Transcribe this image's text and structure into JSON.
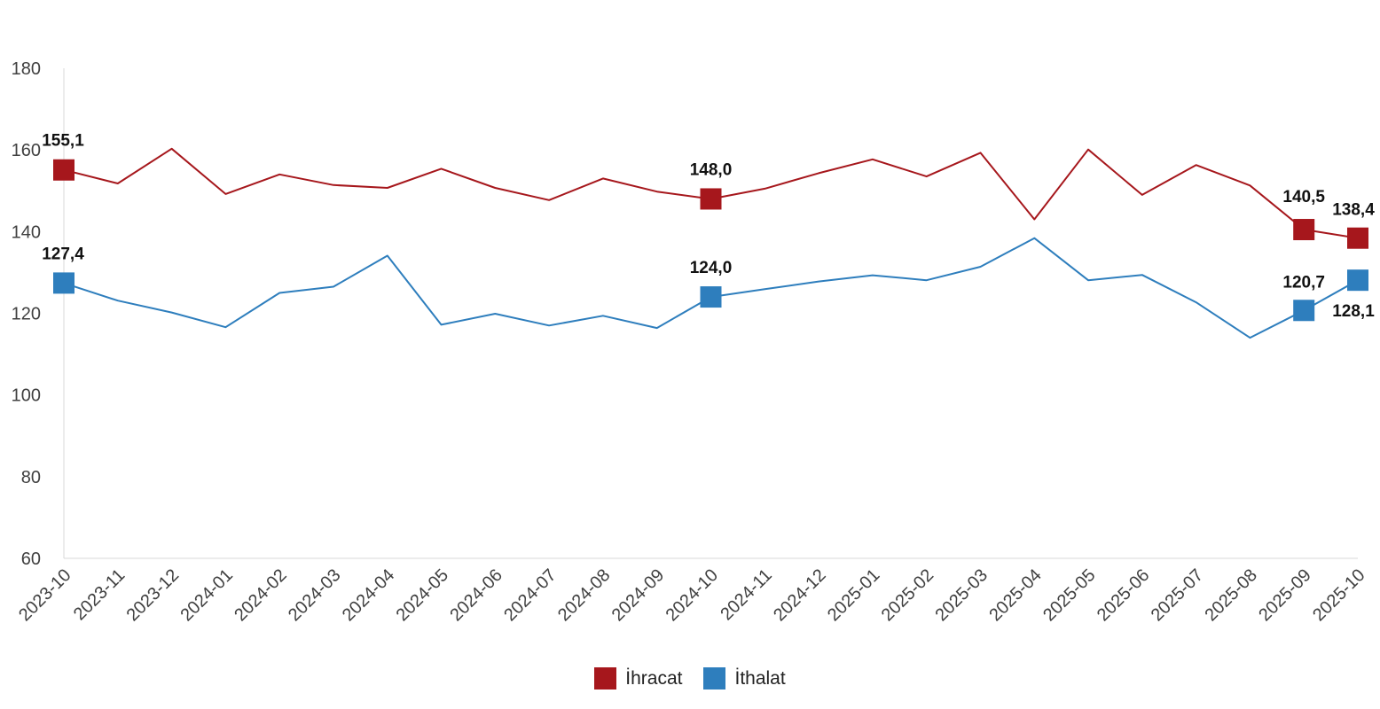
{
  "chart_data": {
    "type": "line",
    "title": "",
    "xlabel": "",
    "ylabel": "",
    "ylim": [
      60,
      180
    ],
    "yticks": [
      60,
      80,
      100,
      120,
      140,
      160,
      180
    ],
    "ytick_labels": [
      "60",
      "80",
      "100",
      "120",
      "140",
      "160",
      "180"
    ],
    "grid": false,
    "legend_position": "bottom-center",
    "categories": [
      "2023-10",
      "2023-11",
      "2023-12",
      "2024-01",
      "2024-02",
      "2024-03",
      "2024-04",
      "2024-05",
      "2024-06",
      "2024-07",
      "2024-08",
      "2024-09",
      "2024-10",
      "2024-11",
      "2024-12",
      "2025-01",
      "2025-02",
      "2025-03",
      "2025-04",
      "2025-05",
      "2025-06",
      "2025-07",
      "2025-08",
      "2025-09",
      "2025-10"
    ],
    "series": [
      {
        "name": "İhracat",
        "color": "#a6171c",
        "values": [
          155.1,
          151.8,
          160.3,
          149.2,
          154.0,
          151.4,
          150.7,
          155.4,
          150.7,
          147.7,
          153.0,
          149.8,
          148.0,
          150.5,
          154.3,
          157.7,
          153.5,
          159.3,
          143.0,
          160.1,
          149.0,
          156.3,
          151.3,
          140.5,
          138.4
        ],
        "markers": [
          0,
          12,
          23,
          24
        ],
        "labels": {
          "0": "155,1",
          "12": "148,0",
          "23": "140,5",
          "24": "138,4"
        }
      },
      {
        "name": "İthalat",
        "color": "#2e7ebd",
        "values": [
          127.4,
          123.1,
          120.2,
          116.6,
          125.0,
          126.5,
          134.1,
          117.2,
          119.9,
          117.0,
          119.4,
          116.4,
          124.0,
          125.9,
          127.8,
          129.3,
          128.1,
          131.4,
          138.4,
          128.1,
          129.4,
          122.7,
          114.0,
          120.7,
          128.1
        ],
        "markers": [
          0,
          12,
          23,
          24
        ],
        "labels": {
          "0": "127,4",
          "12": "124,0",
          "23": "120,7",
          "24": "128,1"
        }
      }
    ]
  }
}
